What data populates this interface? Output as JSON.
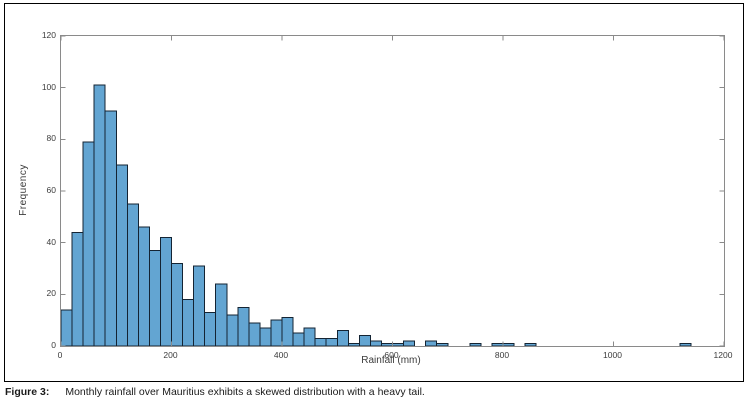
{
  "figure": {
    "caption_label": "Figure 3:",
    "caption_text": "Monthly rainfall over Mauritius exhibits a skewed distribution with a heavy tail."
  },
  "chart_data": {
    "type": "bar",
    "subtype": "histogram",
    "title": "",
    "xlabel": "Rainfall (mm)",
    "ylabel": "Frequency",
    "xlim": [
      0,
      1200
    ],
    "ylim": [
      0,
      120
    ],
    "x_ticks": [
      0,
      200,
      400,
      600,
      800,
      1000,
      1200
    ],
    "y_ticks": [
      0,
      20,
      40,
      60,
      80,
      100,
      120
    ],
    "bin_width": 20,
    "bin_start": 0,
    "frequencies": [
      14,
      44,
      79,
      101,
      91,
      70,
      55,
      46,
      37,
      42,
      32,
      18,
      31,
      13,
      24,
      12,
      15,
      9,
      7,
      10,
      11,
      5,
      7,
      3,
      3,
      6,
      1,
      4,
      2,
      1,
      1,
      2,
      0,
      2,
      1,
      0,
      0,
      1,
      0,
      1,
      1,
      0,
      1,
      0,
      0,
      0,
      0,
      0,
      0,
      0,
      0,
      0,
      0,
      0,
      0,
      0,
      1
    ],
    "grid": false,
    "colors": {
      "bar_fill": "#63a5d2",
      "bar_edge": "#142433",
      "axis_line": "#8a8a8a",
      "tick_label": "#3c3c3c"
    }
  }
}
